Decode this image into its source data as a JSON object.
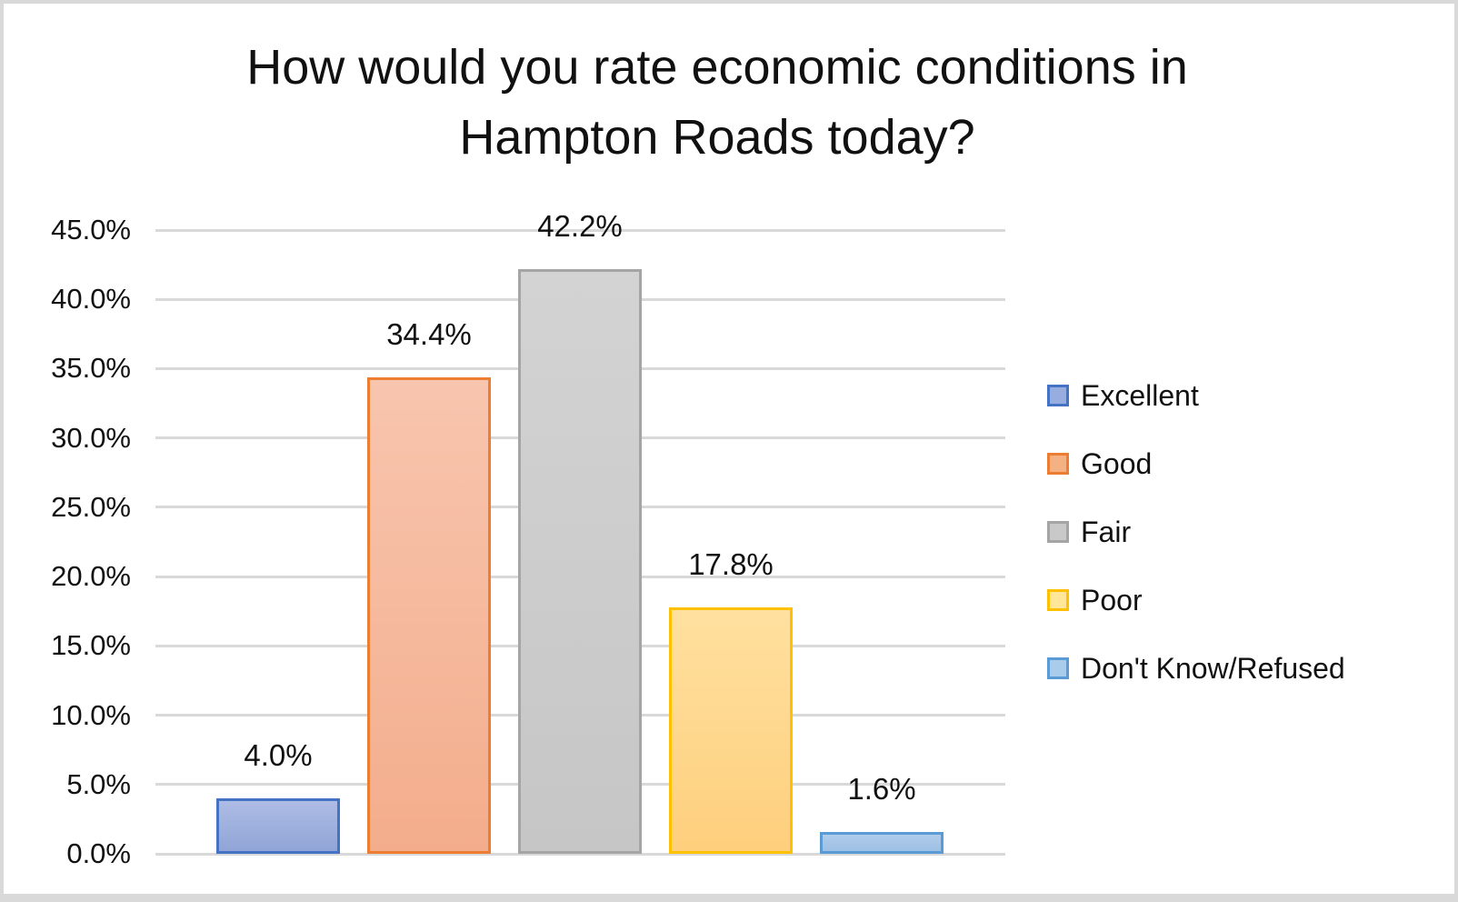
{
  "chart_data": {
    "type": "bar",
    "title": "How would you rate economic conditions in Hampton Roads today?",
    "title_lines": [
      "How would you rate economic conditions in",
      "Hampton Roads today?"
    ],
    "categories": [
      "Excellent",
      "Good",
      "Fair",
      "Poor",
      "Don't Know/Refused"
    ],
    "values": [
      4.0,
      34.4,
      42.2,
      17.8,
      1.6
    ],
    "value_labels": [
      "4.0%",
      "34.4%",
      "42.2%",
      "17.8%",
      "1.6%"
    ],
    "xlabel": "",
    "ylabel": "",
    "ylim": [
      0,
      45
    ],
    "ytick_step": 5,
    "ytick_labels": [
      "0.0%",
      "5.0%",
      "10.0%",
      "15.0%",
      "20.0%",
      "25.0%",
      "30.0%",
      "35.0%",
      "40.0%",
      "45.0%"
    ],
    "grid": true,
    "legend_position": "right",
    "series": [
      {
        "label": "Excellent",
        "value": 4.0,
        "value_label": "4.0%",
        "fill_top": "#AEBCE5",
        "fill_bottom": "#90A5D6",
        "border": "#4472C4",
        "legend_fill": "#97ACDF"
      },
      {
        "label": "Good",
        "value": 34.4,
        "value_label": "34.4%",
        "fill_top": "#F8C5AE",
        "fill_bottom": "#F3AD8C",
        "border": "#ED7D31",
        "legend_fill": "#F4B183"
      },
      {
        "label": "Fair",
        "value": 42.2,
        "value_label": "42.2%",
        "fill_top": "#D3D3D3",
        "fill_bottom": "#C6C6C6",
        "border": "#A5A5A5",
        "legend_fill": "#C9C9C9"
      },
      {
        "label": "Poor",
        "value": 17.8,
        "value_label": "17.8%",
        "fill_top": "#FFE09F",
        "fill_bottom": "#FECF7D",
        "border": "#FFC000",
        "legend_fill": "#FFE699"
      },
      {
        "label": "Don't Know/Refused",
        "value": 1.6,
        "value_label": "1.6%",
        "fill_top": "#B0CCEB",
        "fill_bottom": "#9DC0E5",
        "border": "#5B9BD5",
        "legend_fill": "#A9CBEC"
      }
    ],
    "colors": {
      "gridline": "#D9D9D9",
      "text": "#111111",
      "background": "#FFFFFF",
      "frame_border": "#D9D9D9"
    }
  }
}
